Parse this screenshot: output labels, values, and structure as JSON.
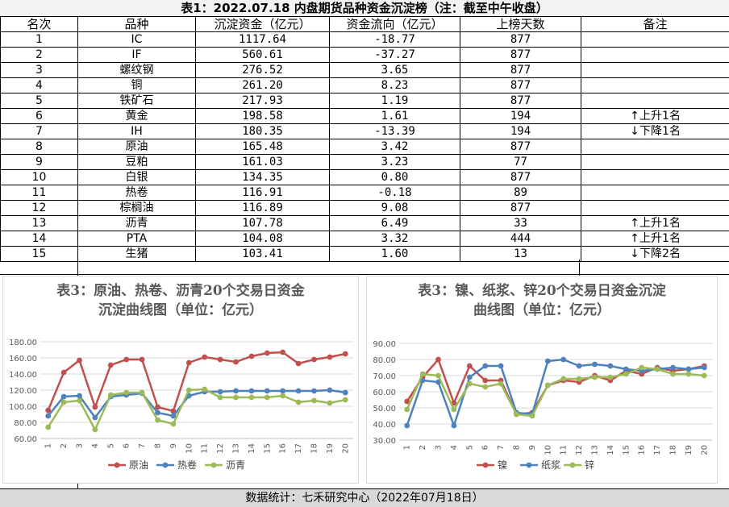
{
  "title": "表1：2022.07.18 内盘期货品种资金沉淀榜（注：截至中午收盘）",
  "headers": [
    "名次",
    "品种",
    "沉淀资金（亿元）",
    "资金流向（亿元）",
    "上榜天数",
    "备注"
  ],
  "rows": [
    {
      "rank": "1",
      "name": "IC",
      "fund": "1117.64",
      "flow": "-18.77",
      "days": "877",
      "note": "",
      "dir": ""
    },
    {
      "rank": "2",
      "name": "IF",
      "fund": "560.61",
      "flow": "-37.27",
      "days": "877",
      "note": "",
      "dir": ""
    },
    {
      "rank": "3",
      "name": "螺纹钢",
      "fund": "276.52",
      "flow": "3.65",
      "days": "877",
      "note": "",
      "dir": ""
    },
    {
      "rank": "4",
      "name": "铜",
      "fund": "261.20",
      "flow": "8.23",
      "days": "877",
      "note": "",
      "dir": ""
    },
    {
      "rank": "5",
      "name": "铁矿石",
      "fund": "217.93",
      "flow": "1.19",
      "days": "877",
      "note": "",
      "dir": ""
    },
    {
      "rank": "6",
      "name": "黄金",
      "fund": "198.58",
      "flow": "1.61",
      "days": "194",
      "note": "上升1名",
      "dir": "↑"
    },
    {
      "rank": "7",
      "name": "IH",
      "fund": "180.35",
      "flow": "-13.39",
      "days": "194",
      "note": "下降1名",
      "dir": "↓"
    },
    {
      "rank": "8",
      "name": "原油",
      "fund": "165.48",
      "flow": "3.42",
      "days": "877",
      "note": "",
      "dir": ""
    },
    {
      "rank": "9",
      "name": "豆粕",
      "fund": "161.03",
      "flow": "3.23",
      "days": "77",
      "note": "",
      "dir": ""
    },
    {
      "rank": "10",
      "name": "白银",
      "fund": "134.35",
      "flow": "0.80",
      "days": "877",
      "note": "",
      "dir": ""
    },
    {
      "rank": "11",
      "name": "热卷",
      "fund": "116.91",
      "flow": "-0.18",
      "days": "89",
      "note": "",
      "dir": ""
    },
    {
      "rank": "12",
      "name": "棕榈油",
      "fund": "116.89",
      "flow": "9.08",
      "days": "877",
      "note": "",
      "dir": ""
    },
    {
      "rank": "13",
      "name": "沥青",
      "fund": "107.78",
      "flow": "6.49",
      "days": "33",
      "note": "上升1名",
      "dir": "↑"
    },
    {
      "rank": "14",
      "name": "PTA",
      "fund": "104.08",
      "flow": "3.32",
      "days": "444",
      "note": "上升1名",
      "dir": "↑"
    },
    {
      "rank": "15",
      "name": "生猪",
      "fund": "103.41",
      "flow": "1.60",
      "days": "13",
      "note": "下降2名",
      "dir": "↓"
    }
  ],
  "footer": "数据统计：七禾研究中心（2022年07月18日）",
  "chart_data": [
    {
      "type": "line",
      "title_line1": "表3：原油、热卷、沥青20个交易日资金",
      "title_line2": "沉淀曲线图（单位：亿元）",
      "x": [
        "1",
        "2",
        "3",
        "4",
        "5",
        "6",
        "7",
        "8",
        "9",
        "10",
        "11",
        "12",
        "13",
        "14",
        "15",
        "16",
        "17",
        "18",
        "19",
        "20"
      ],
      "ylim": [
        60,
        180
      ],
      "yticks": [
        "60.00",
        "80.00",
        "100.00",
        "120.00",
        "140.00",
        "160.00",
        "180.00"
      ],
      "grid": true,
      "legend_position": "bottom",
      "series": [
        {
          "name": "原油",
          "color": "#c0504d",
          "values": [
            95,
            142,
            157,
            99,
            151,
            158,
            158,
            99,
            94,
            154,
            161,
            158,
            155,
            162,
            166,
            167,
            153,
            158,
            161,
            165
          ]
        },
        {
          "name": "热卷",
          "color": "#4f81bd",
          "values": [
            88,
            112,
            113,
            86,
            112,
            114,
            116,
            92,
            88,
            113,
            118,
            118,
            119,
            119,
            119,
            119,
            119,
            119,
            120,
            117
          ]
        },
        {
          "name": "沥青",
          "color": "#9bbb59",
          "values": [
            74,
            105,
            107,
            71,
            114,
            117,
            117,
            83,
            78,
            120,
            121,
            111,
            111,
            111,
            111,
            113,
            105,
            107,
            104,
            108
          ]
        }
      ]
    },
    {
      "type": "line",
      "title_line1": "表3：镍、纸浆、锌20个交易日资金沉淀",
      "title_line2": "曲线图（单位：亿元）",
      "x": [
        "1",
        "2",
        "3",
        "4",
        "5",
        "6",
        "7",
        "8",
        "9",
        "10",
        "11",
        "12",
        "13",
        "14",
        "15",
        "16",
        "17",
        "18",
        "19",
        "20"
      ],
      "ylim": [
        30,
        90
      ],
      "yticks": [
        "30.00",
        "40.00",
        "50.00",
        "60.00",
        "70.00",
        "80.00",
        "90.00"
      ],
      "grid": true,
      "legend_position": "bottom",
      "series": [
        {
          "name": "镍",
          "color": "#c0504d",
          "values": [
            54,
            69,
            80,
            53,
            76,
            67,
            67,
            46,
            47,
            64,
            67,
            66,
            70,
            67,
            73,
            71,
            75,
            73,
            74,
            76
          ]
        },
        {
          "name": "纸浆",
          "color": "#4f81bd",
          "values": [
            39,
            67,
            66,
            39,
            69,
            76,
            76,
            47,
            46,
            79,
            80,
            76,
            77,
            76,
            74,
            73,
            74,
            75,
            74,
            75
          ]
        },
        {
          "name": "锌",
          "color": "#9bbb59",
          "values": [
            49,
            71,
            70,
            49,
            65,
            63,
            65,
            46,
            45,
            64,
            68,
            68,
            69,
            69,
            71,
            75,
            74,
            71,
            71,
            70
          ]
        }
      ]
    }
  ]
}
